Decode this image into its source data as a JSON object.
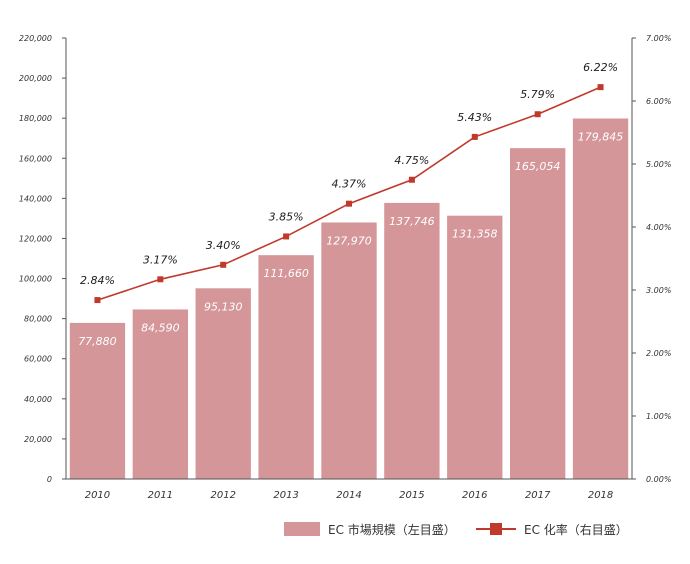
{
  "chart_data": {
    "type": "bar",
    "categories": [
      "2010",
      "2011",
      "2012",
      "2013",
      "2014",
      "2015",
      "2016",
      "2017",
      "2018"
    ],
    "series": [
      {
        "name": "EC 市場規模（左目盛）",
        "kind": "bar",
        "axis": "left",
        "values": [
          77880,
          84590,
          95130,
          111660,
          127970,
          137746,
          131358,
          165054,
          179845
        ],
        "labels": [
          "77,880",
          "84,590",
          "95,130",
          "111,660",
          "127,970",
          "137,746",
          "131,358",
          "165,054",
          "179,845"
        ],
        "color": "#d5969a"
      },
      {
        "name": "EC 化率（右目盛）",
        "kind": "line",
        "axis": "right",
        "values": [
          2.84,
          3.17,
          3.4,
          3.85,
          4.37,
          4.75,
          5.43,
          5.79,
          6.22
        ],
        "labels": [
          "2.84%",
          "3.17%",
          "3.40%",
          "3.85%",
          "4.37%",
          "4.75%",
          "5.43%",
          "5.79%",
          "6.22%"
        ],
        "color": "#c0392b"
      }
    ],
    "y_left": {
      "range": [
        0,
        220000
      ],
      "ticks": [
        0,
        20000,
        40000,
        60000,
        80000,
        100000,
        120000,
        140000,
        160000,
        180000,
        200000,
        220000
      ],
      "tick_labels": [
        "0",
        "20,000",
        "40,000",
        "60,000",
        "80,000",
        "100,000",
        "120,000",
        "140,000",
        "160,000",
        "180,000",
        "200,000",
        "220,000"
      ]
    },
    "y_right": {
      "range": [
        0,
        7
      ],
      "ticks": [
        0,
        1,
        2,
        3,
        4,
        5,
        6,
        7
      ],
      "tick_labels": [
        "0.00%",
        "1.00%",
        "2.00%",
        "3.00%",
        "4.00%",
        "5.00%",
        "6.00%",
        "7.00%"
      ]
    },
    "grid": false,
    "legend_position": "bottom-right",
    "title": "",
    "xlabel": "",
    "ylabel": ""
  }
}
